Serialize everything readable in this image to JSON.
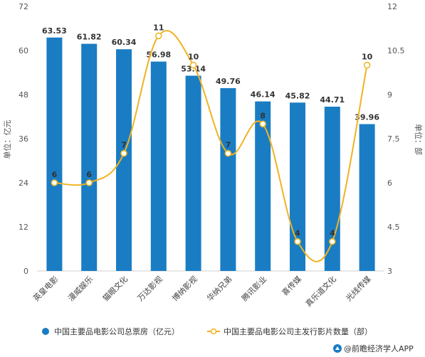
{
  "chart_data": {
    "type": "bar",
    "categories": [
      "英皇电影",
      "漫威娱乐",
      "猫眼文化",
      "万达影视",
      "博纳影视",
      "华纳兄弟",
      "腾讯影业",
      "喜传媒",
      "真乐道文化",
      "光线传媒"
    ],
    "series": [
      {
        "name": "中国主要品电影公司总票房（亿元）",
        "type": "bar",
        "axis": "left",
        "values": [
          63.53,
          61.82,
          60.34,
          56.98,
          53.14,
          49.76,
          46.14,
          45.82,
          44.71,
          39.96
        ],
        "labels": [
          "63.53",
          "61.82",
          "60.34",
          "56.98",
          "53.14",
          "49.76",
          "46.14",
          "45.82",
          "44.71",
          "39.96"
        ]
      },
      {
        "name": "中国主要品电影公司主发行影片数量（部）",
        "type": "line",
        "axis": "right",
        "values": [
          6,
          6,
          7,
          11,
          10,
          7,
          8,
          4,
          4,
          10
        ],
        "labels": [
          "6",
          "6",
          "7",
          "11",
          "10",
          "7",
          "8",
          "4",
          "4",
          "10"
        ]
      }
    ],
    "ylabel": "单位：亿元",
    "y2label": "单位：部",
    "ylim": [
      0,
      72
    ],
    "yticks": [
      "0",
      "12",
      "24",
      "36",
      "48",
      "60",
      "72"
    ],
    "y2lim": [
      3,
      12
    ],
    "y2ticks": [
      "3",
      "4.5",
      "6",
      "7.5",
      "9",
      "10.5",
      "12"
    ],
    "grid": false,
    "legend": "bottom",
    "colors": {
      "bar": "#1a7dc4",
      "line": "#f0b322",
      "marker_fill": "#ffffff",
      "axis": "#d0d0d0"
    }
  },
  "source": {
    "icon": "brand-logo-icon",
    "text": "@前瞻经济学人APP"
  }
}
